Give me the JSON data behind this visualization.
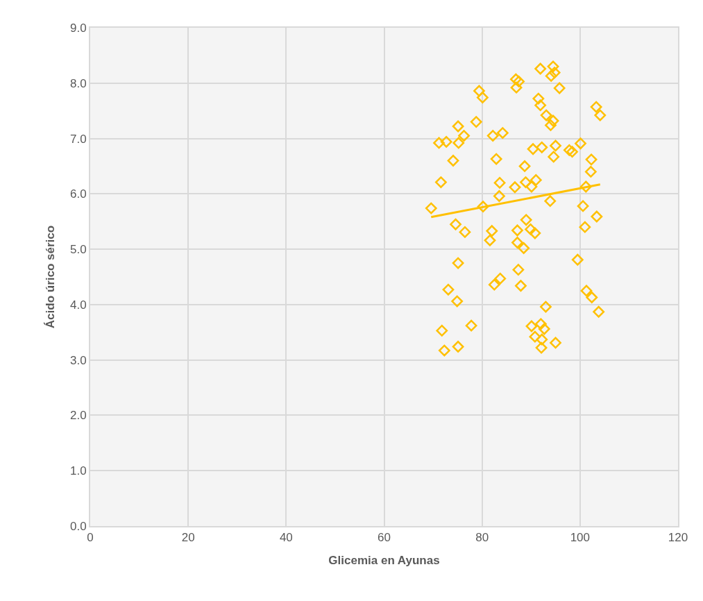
{
  "chart_data": {
    "type": "scatter",
    "xlabel": "Glicemia en Ayunas",
    "ylabel": "Ácido úrico sérico",
    "xlim": [
      0,
      120
    ],
    "xticks": [
      0,
      20,
      40,
      60,
      80,
      100,
      120
    ],
    "ylim": [
      0,
      9
    ],
    "yticks": [
      {
        "value": 0,
        "label": "0.0"
      },
      {
        "value": 1,
        "label": "1.0"
      },
      {
        "value": 2,
        "label": "2.0"
      },
      {
        "value": 3,
        "label": "3.0"
      },
      {
        "value": 4,
        "label": "4.0"
      },
      {
        "value": 5,
        "label": "5.0"
      },
      {
        "value": 6,
        "label": "6.0"
      },
      {
        "value": 7,
        "label": "7.0"
      },
      {
        "value": 8,
        "label": "8.0"
      },
      {
        "value": 9,
        "label": "9.0"
      }
    ],
    "grid": true,
    "marker": "diamond",
    "series": [
      {
        "color": "#ffc000",
        "x": [
          91.9,
          94.5,
          94.8,
          94.1,
          86.9,
          87.5,
          87.0,
          95.8,
          79.4,
          80.1,
          91.5,
          91.9,
          103.3,
          104.1,
          93.1,
          94.5,
          94.0,
          78.8,
          75.1,
          76.3,
          75.2,
          72.7,
          71.2,
          82.2,
          84.2,
          74.1,
          82.9,
          90.4,
          92.2,
          95.0,
          94.6,
          97.8,
          98.4,
          100.1,
          102.3,
          102.2,
          88.7,
          71.6,
          83.6,
          86.7,
          88.9,
          91.0,
          90.1,
          101.2,
          83.5,
          69.6,
          80.2,
          93.9,
          100.6,
          103.4,
          74.6,
          76.5,
          89.0,
          87.2,
          89.9,
          90.8,
          82.0,
          81.6,
          87.2,
          88.5,
          101.0,
          75.1,
          87.4,
          99.5,
          83.7,
          82.5,
          87.9,
          73.1,
          74.9,
          101.3,
          102.4,
          103.8,
          93.0,
          77.8,
          71.8,
          90.1,
          92.0,
          92.7,
          90.8,
          92.2,
          92.1,
          95.0,
          75.1,
          72.3
        ],
        "values": [
          8.26,
          8.3,
          8.19,
          8.13,
          8.07,
          8.03,
          7.92,
          7.91,
          7.86,
          7.74,
          7.72,
          7.6,
          7.57,
          7.42,
          7.42,
          7.32,
          7.24,
          7.3,
          7.22,
          7.05,
          6.92,
          6.94,
          6.92,
          7.05,
          7.1,
          6.6,
          6.63,
          6.81,
          6.84,
          6.87,
          6.67,
          6.79,
          6.76,
          6.91,
          6.62,
          6.4,
          6.5,
          6.21,
          6.2,
          6.12,
          6.21,
          6.25,
          6.13,
          6.13,
          5.96,
          5.74,
          5.77,
          5.87,
          5.78,
          5.59,
          5.45,
          5.31,
          5.53,
          5.34,
          5.36,
          5.29,
          5.33,
          5.16,
          5.12,
          5.02,
          5.4,
          4.75,
          4.63,
          4.81,
          4.47,
          4.36,
          4.34,
          4.27,
          4.06,
          4.25,
          4.13,
          3.87,
          3.96,
          3.62,
          3.53,
          3.61,
          3.65,
          3.56,
          3.42,
          3.37,
          3.22,
          3.31,
          3.24,
          3.17
        ]
      },
      {
        "type": "line",
        "color": "#ffc000",
        "marker": "none",
        "line_style": "solid",
        "x": [
          69.6,
          104.1
        ],
        "values": [
          5.58,
          6.17
        ]
      }
    ]
  }
}
